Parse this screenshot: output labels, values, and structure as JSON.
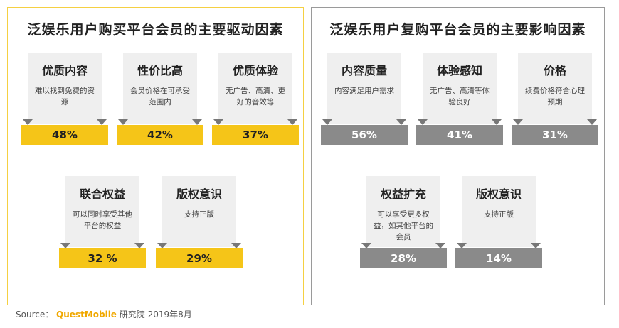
{
  "chart_data": [
    {
      "type": "table",
      "title": "泛娱乐用户购买平台会员的主要驱动因素",
      "items": [
        {
          "name": "优质内容",
          "desc": "难以找到免费的资源",
          "value": "48%"
        },
        {
          "name": "性价比高",
          "desc": "会员价格在可承受范围内",
          "value": "42%"
        },
        {
          "name": "优质体验",
          "desc": "无广告、高清、更好的音效等",
          "value": "37%"
        },
        {
          "name": "联合权益",
          "desc": "可以同时享受其他平台的权益",
          "value": "32 %"
        },
        {
          "name": "版权意识",
          "desc": "支持正版",
          "value": "29%"
        }
      ]
    },
    {
      "type": "table",
      "title": "泛娱乐用户复购平台会员的主要影响因素",
      "items": [
        {
          "name": "内容质量",
          "desc": "内容满足用户需求",
          "value": "56%"
        },
        {
          "name": "体验感知",
          "desc": "无广告、高清等体验良好",
          "value": "41%"
        },
        {
          "name": "价格",
          "desc": "续费价格符合心理预期",
          "value": "31%"
        },
        {
          "name": "权益扩充",
          "desc": "可以享受更多权益，如其他平台的会员",
          "value": "28%"
        },
        {
          "name": "版权意识",
          "desc": "支持正版",
          "value": "14%"
        }
      ]
    }
  ],
  "colors": {
    "left_accent": "#f5c518",
    "right_accent": "#8a8a8a"
  },
  "source": {
    "label": "Source：",
    "brand": "QuestMobile",
    "rest": " 研究院 2019年8月"
  }
}
